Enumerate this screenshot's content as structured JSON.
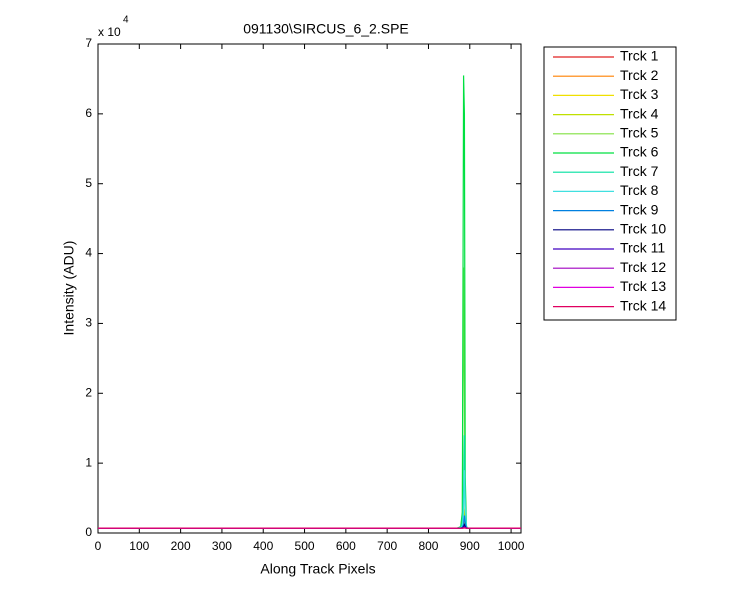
{
  "chart_data": {
    "type": "line",
    "title": "091130\\SIRCUS_6_2.SPE",
    "x_label": "Along Track Pixels",
    "y_label": "Intensity (ADU)",
    "y_multiplier": {
      "base": "x 10",
      "exponent": "4"
    },
    "xlim": [
      0,
      1024
    ],
    "xticks": [
      0,
      100,
      200,
      300,
      400,
      500,
      600,
      700,
      800,
      900,
      1000
    ],
    "ylim": [
      0,
      70000
    ],
    "yticks": [
      {
        "value": 0,
        "label": "0"
      },
      {
        "value": 10000,
        "label": "1"
      },
      {
        "value": 20000,
        "label": "2"
      },
      {
        "value": 30000,
        "label": "3"
      },
      {
        "value": 40000,
        "label": "4"
      },
      {
        "value": 50000,
        "label": "5"
      },
      {
        "value": 60000,
        "label": "6"
      },
      {
        "value": 70000,
        "label": "7"
      }
    ],
    "x": [
      0,
      870,
      878,
      882,
      885,
      887,
      889,
      892,
      896,
      1024
    ],
    "series": [
      {
        "name": "Trck 1",
        "color": "#e02020",
        "values": [
          700,
          700,
          700,
          800,
          1200,
          1000,
          800,
          700,
          700,
          700
        ]
      },
      {
        "name": "Trck 2",
        "color": "#ff8000",
        "values": [
          700,
          700,
          700,
          800,
          1500,
          1200,
          800,
          700,
          700,
          700
        ]
      },
      {
        "name": "Trck 3",
        "color": "#f0e000",
        "values": [
          700,
          700,
          700,
          900,
          2000,
          1600,
          900,
          700,
          700,
          700
        ]
      },
      {
        "name": "Trck 4",
        "color": "#c0e000",
        "values": [
          700,
          700,
          750,
          1200,
          3500,
          2500,
          1000,
          700,
          700,
          700
        ]
      },
      {
        "name": "Trck 5",
        "color": "#80e040",
        "values": [
          700,
          700,
          800,
          2500,
          38000,
          20000,
          2000,
          800,
          700,
          700
        ]
      },
      {
        "name": "Trck 6",
        "color": "#00e040",
        "values": [
          700,
          700,
          900,
          3000,
          65500,
          60000,
          8000,
          900,
          700,
          700
        ]
      },
      {
        "name": "Trck 7",
        "color": "#00e0a0",
        "values": [
          700,
          700,
          800,
          1500,
          6000,
          14000,
          5000,
          800,
          700,
          700
        ]
      },
      {
        "name": "Trck 8",
        "color": "#40e0e0",
        "values": [
          700,
          700,
          750,
          1000,
          3000,
          9000,
          4000,
          800,
          700,
          700
        ]
      },
      {
        "name": "Trck 9",
        "color": "#0080e0",
        "values": [
          700,
          700,
          700,
          800,
          1200,
          2500,
          1500,
          700,
          700,
          700
        ]
      },
      {
        "name": "Trck 10",
        "color": "#000080",
        "values": [
          700,
          700,
          700,
          750,
          900,
          1200,
          900,
          700,
          700,
          700
        ]
      },
      {
        "name": "Trck 11",
        "color": "#4000c0",
        "values": [
          700,
          700,
          700,
          700,
          800,
          900,
          800,
          700,
          700,
          700
        ]
      },
      {
        "name": "Trck 12",
        "color": "#a000c0",
        "values": [
          700,
          700,
          700,
          700,
          750,
          800,
          750,
          700,
          700,
          700
        ]
      },
      {
        "name": "Trck 13",
        "color": "#e000e0",
        "values": [
          700,
          700,
          700,
          700,
          720,
          750,
          720,
          700,
          700,
          700
        ]
      },
      {
        "name": "Trck 14",
        "color": "#e00060",
        "values": [
          700,
          700,
          700,
          700,
          700,
          720,
          700,
          700,
          700,
          700
        ]
      }
    ]
  }
}
